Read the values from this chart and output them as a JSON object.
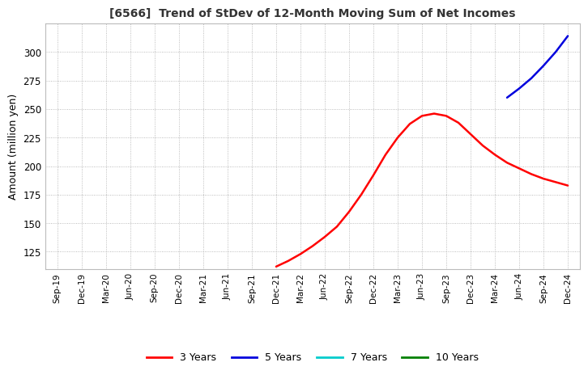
{
  "title": "[6566]  Trend of StDev of 12-Month Moving Sum of Net Incomes",
  "ylabel": "Amount (million yen)",
  "ylim": [
    110,
    325
  ],
  "yticks": [
    125,
    150,
    175,
    200,
    225,
    250,
    275,
    300
  ],
  "background_color": "#ffffff",
  "grid_color": "#aaaaaa",
  "line_3y_color": "#ff0000",
  "line_5y_color": "#0000dd",
  "line_7y_color": "#00cccc",
  "line_10y_color": "#008000",
  "x_labels": [
    "Sep-19",
    "Dec-19",
    "Mar-20",
    "Jun-20",
    "Sep-20",
    "Dec-20",
    "Mar-21",
    "Jun-21",
    "Sep-21",
    "Dec-21",
    "Mar-22",
    "Jun-22",
    "Sep-22",
    "Dec-22",
    "Mar-23",
    "Jun-23",
    "Sep-23",
    "Dec-23",
    "Mar-24",
    "Jun-24",
    "Sep-24",
    "Dec-24"
  ],
  "line_3y_x": [
    9,
    9.5,
    10,
    10.5,
    11,
    11.5,
    12,
    12.5,
    13,
    13.5,
    14,
    14.5,
    15,
    15.5,
    16,
    16.5,
    17,
    17.5,
    18,
    18.5,
    19,
    19.5,
    20,
    20.5,
    21
  ],
  "line_3y_y": [
    112,
    117,
    123,
    130,
    138,
    147,
    160,
    175,
    192,
    210,
    225,
    237,
    244,
    246,
    244,
    238,
    228,
    218,
    210,
    203,
    198,
    193,
    189,
    186,
    183
  ],
  "line_5y_x": [
    18.5,
    19,
    19.5,
    20,
    20.5,
    21
  ],
  "line_5y_y": [
    260,
    268,
    277,
    288,
    300,
    314
  ],
  "legend_labels": [
    "3 Years",
    "5 Years",
    "7 Years",
    "10 Years"
  ],
  "legend_colors": [
    "#ff0000",
    "#0000dd",
    "#00cccc",
    "#008000"
  ]
}
